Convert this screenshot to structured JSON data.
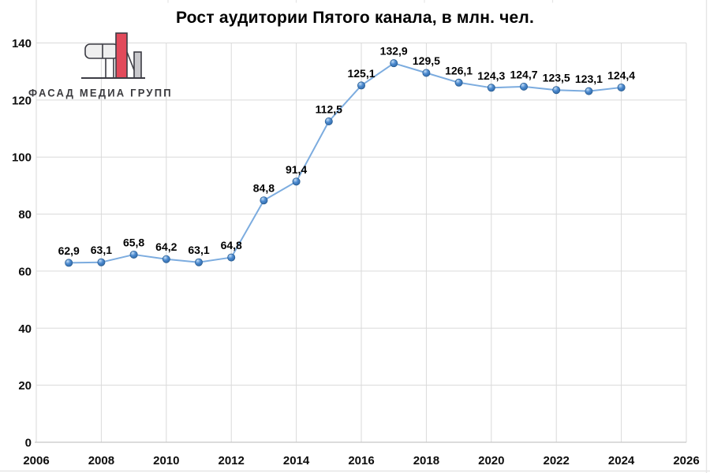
{
  "page": {
    "background": "#FFFFFF"
  },
  "logo": {
    "text": "ФАСАД МЕДИА ГРУПП",
    "colors": {
      "red": "#E24A5B",
      "gray": "#C9C9CD",
      "light_fill": "#EFEFEF",
      "outline": "#3C3C44",
      "text": "#3A3A3E"
    }
  },
  "chart_data": {
    "type": "line",
    "title": "Рост аудитории Пятого канала, в млн. чел.",
    "x": [
      2007,
      2008,
      2009,
      2010,
      2011,
      2012,
      2013,
      2014,
      2015,
      2016,
      2017,
      2018,
      2019,
      2020,
      2021,
      2022,
      2023,
      2024
    ],
    "values": [
      62.9,
      63.1,
      65.8,
      64.2,
      63.1,
      64.8,
      84.8,
      91.4,
      112.5,
      125.1,
      132.9,
      129.5,
      126.1,
      124.3,
      124.7,
      123.5,
      123.1,
      124.4
    ],
    "point_labels": [
      "62,9",
      "63,1",
      "65,8",
      "64,2",
      "63,1",
      "64,8",
      "84,8",
      "91,4",
      "112,5",
      "125,1",
      "132,9",
      "129,5",
      "126,1",
      "124,3",
      "124,7",
      "123,5",
      "123,1",
      "124,4"
    ],
    "x_ticks": [
      2006,
      2008,
      2010,
      2012,
      2014,
      2016,
      2018,
      2020,
      2022,
      2024,
      2026
    ],
    "y_ticks": [
      0,
      20,
      40,
      60,
      80,
      100,
      120,
      140
    ],
    "xlim": [
      2006,
      2026
    ],
    "ylim": [
      0,
      140
    ],
    "grid": true,
    "legend": "none",
    "colors": {
      "line": "#7CACDF",
      "marker": "#3D7FC7",
      "marker_edge": "#2B5F94",
      "gridline": "#DADADA",
      "axis": "#C6C6C6",
      "tick_label": "#0D0D0D",
      "data_label": "#000000",
      "sheet_line": "#E5E5E5"
    }
  }
}
